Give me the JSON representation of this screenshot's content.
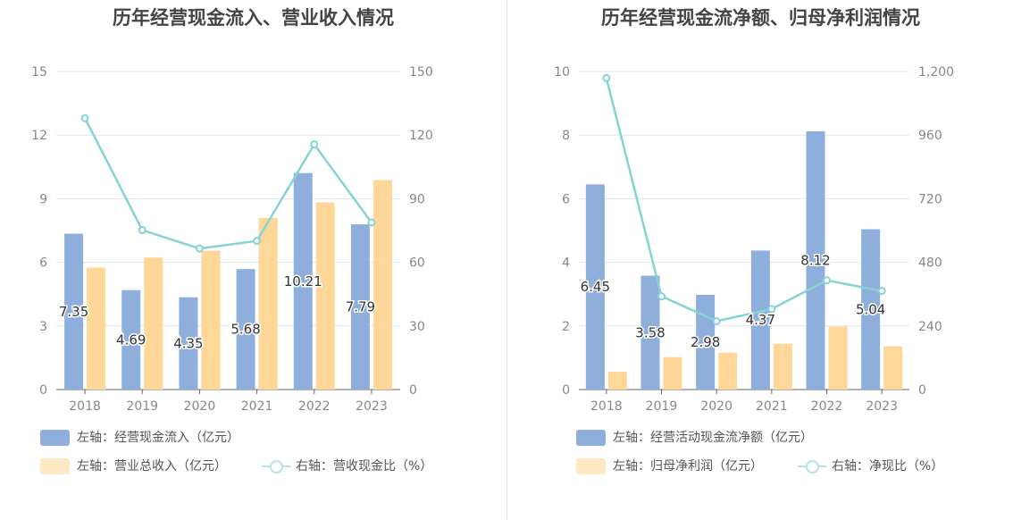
{
  "charts": [
    {
      "title": "历年经营现金流入、营业收入情况",
      "legend": [
        {
          "label": "左轴：经营现金流入（亿元）",
          "color": "#8eaedc",
          "kind": "bar"
        },
        {
          "label": "左轴：营业总收入（亿元）",
          "color": "#fde9c4",
          "kind": "bar"
        },
        {
          "label": "右轴：营收现金比（%）",
          "color": "#b6e2e6",
          "kind": "line"
        }
      ]
    },
    {
      "title": "历年经营现金流净额、归母净利润情况",
      "legend": [
        {
          "label": "左轴：经营活动现金流净额（亿元）",
          "color": "#8eaedc",
          "kind": "bar"
        },
        {
          "label": "左轴：归母净利润（亿元）",
          "color": "#fde9c4",
          "kind": "bar"
        },
        {
          "label": "右轴：净现比（%）",
          "color": "#b6e2e6",
          "kind": "line"
        }
      ]
    }
  ],
  "chart_data": [
    {
      "type": "bar",
      "title": "历年经营现金流入、营业收入情况",
      "categories": [
        "2018",
        "2019",
        "2020",
        "2021",
        "2022",
        "2023"
      ],
      "y_left": {
        "ylim": [
          0,
          15
        ],
        "ticks": [
          "0",
          "3",
          "6",
          "9",
          "12",
          "15"
        ]
      },
      "y_right": {
        "ylim": [
          0,
          150
        ],
        "ticks": [
          "0",
          "30",
          "60",
          "90",
          "120",
          "150"
        ]
      },
      "grid": true,
      "series": [
        {
          "name": "左轴：经营现金流入（亿元）",
          "axis": "left",
          "type": "bar",
          "color": "#8eaedc",
          "values": [
            7.35,
            4.69,
            4.35,
            5.68,
            10.21,
            7.79
          ],
          "labels": [
            "7.35",
            "4.69",
            "4.35",
            "5.68",
            "10.21",
            "7.79"
          ]
        },
        {
          "name": "左轴：营业总收入（亿元）",
          "axis": "left",
          "type": "bar",
          "color": "#ffd899",
          "values": [
            5.75,
            6.23,
            6.55,
            8.1,
            8.83,
            9.88
          ]
        },
        {
          "name": "右轴：营收现金比（%）",
          "axis": "right",
          "type": "line",
          "color": "#86d3d6",
          "values": [
            128,
            75.2,
            66.5,
            70.1,
            115.6,
            78.8
          ]
        }
      ]
    },
    {
      "type": "bar",
      "title": "历年经营现金流净额、归母净利润情况",
      "categories": [
        "2018",
        "2019",
        "2020",
        "2021",
        "2022",
        "2023"
      ],
      "y_left": {
        "ylim": [
          0,
          10
        ],
        "ticks": [
          "0",
          "2",
          "4",
          "6",
          "8",
          "10"
        ]
      },
      "y_right": {
        "ylim": [
          0,
          1200
        ],
        "ticks": [
          "0",
          "240",
          "480",
          "720",
          "960",
          "1,200"
        ]
      },
      "grid": true,
      "series": [
        {
          "name": "左轴：经营活动现金流净额（亿元）",
          "axis": "left",
          "type": "bar",
          "color": "#8eaedc",
          "values": [
            6.45,
            3.58,
            2.98,
            4.37,
            8.12,
            5.04
          ],
          "labels": [
            "6.45",
            "3.58",
            "2.98",
            "4.37",
            "8.12",
            "5.04"
          ]
        },
        {
          "name": "左轴：归母净利润（亿元）",
          "axis": "left",
          "type": "bar",
          "color": "#ffd899",
          "values": [
            0.56,
            1.02,
            1.16,
            1.44,
            1.98,
            1.36
          ]
        },
        {
          "name": "右轴：净现比（%）",
          "axis": "right",
          "type": "line",
          "color": "#86d3d6",
          "values": [
            1175,
            352,
            258,
            304,
            412,
            372
          ]
        }
      ]
    }
  ]
}
